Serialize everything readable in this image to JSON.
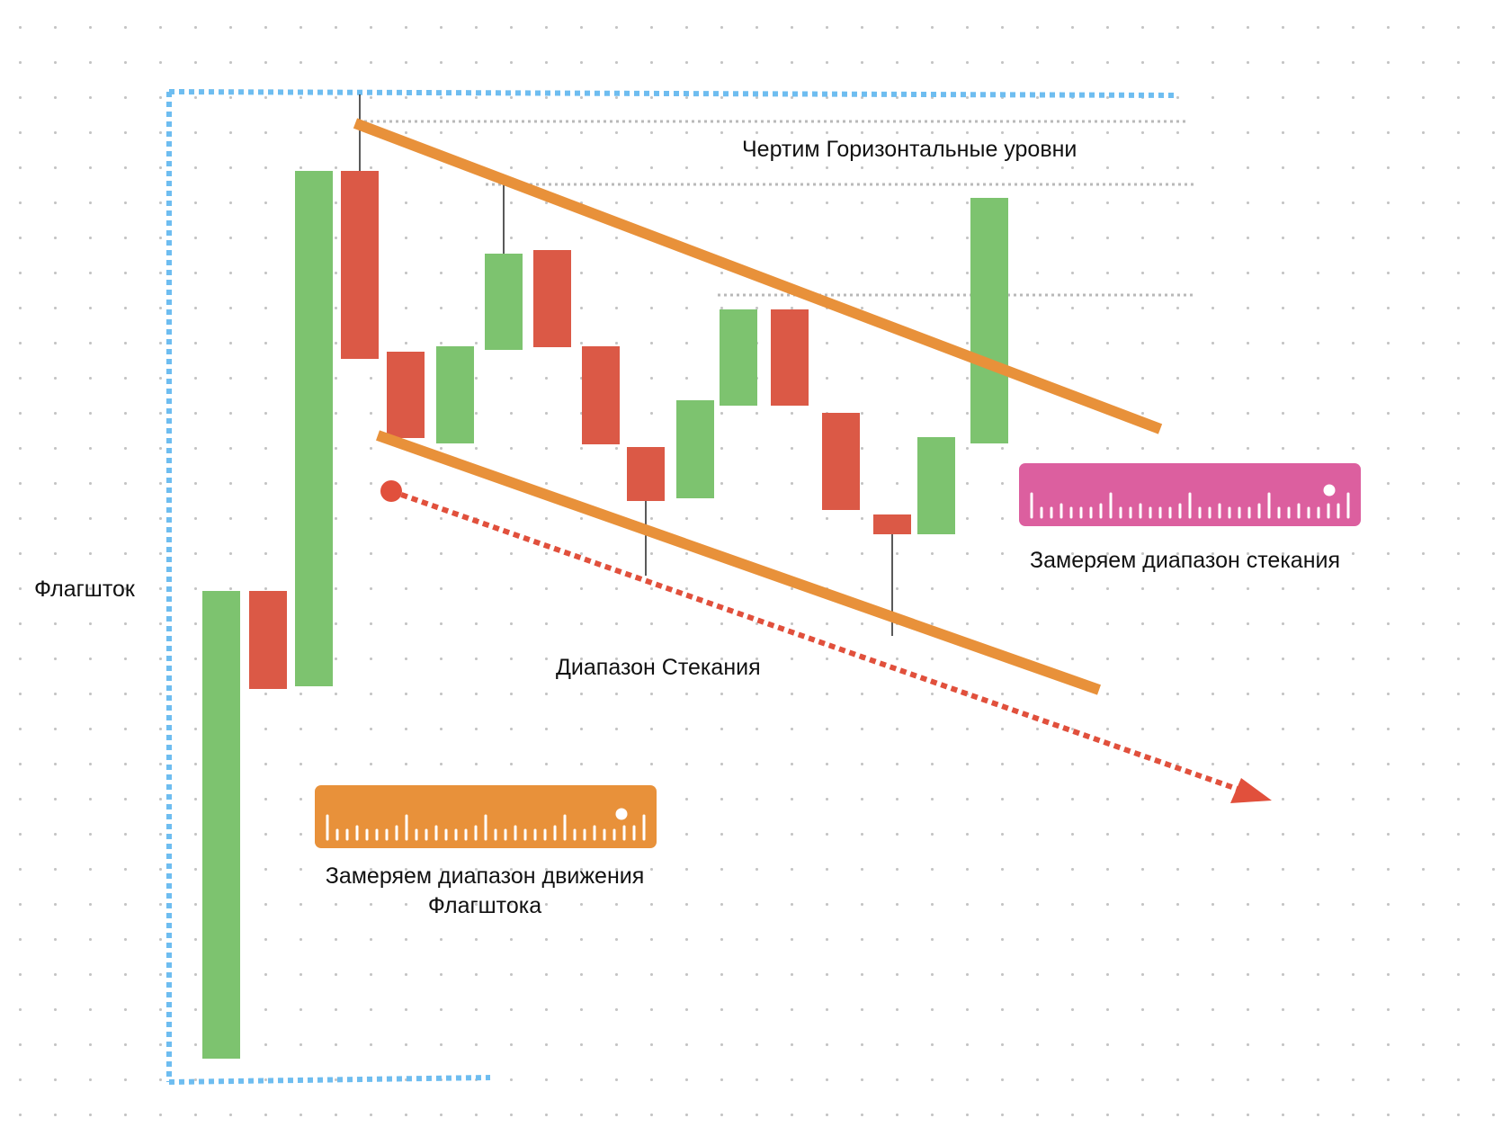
{
  "labels": {
    "horizontal_levels": "Чертим Горизонтальные уровни",
    "flagpole": "Флагшток",
    "convergence_range": "Диапазон Стекания",
    "measure_convergence": "Замеряем диапазон стекания",
    "measure_flagpole_line1": "Замеряем диапазон движения",
    "measure_flagpole_line2": "Флагштока"
  },
  "colors": {
    "bullish": "#7dc36f",
    "bearish": "#db5946",
    "trendline": "#e8913a",
    "flagpole_box": "#6ebdf0",
    "arrow": "#e1503c",
    "ruler_pink": "#dc5f9f",
    "ruler_orange": "#e8913a"
  },
  "icons": {
    "ruler_convergence": "ruler-icon",
    "ruler_flagpole": "ruler-icon"
  }
}
